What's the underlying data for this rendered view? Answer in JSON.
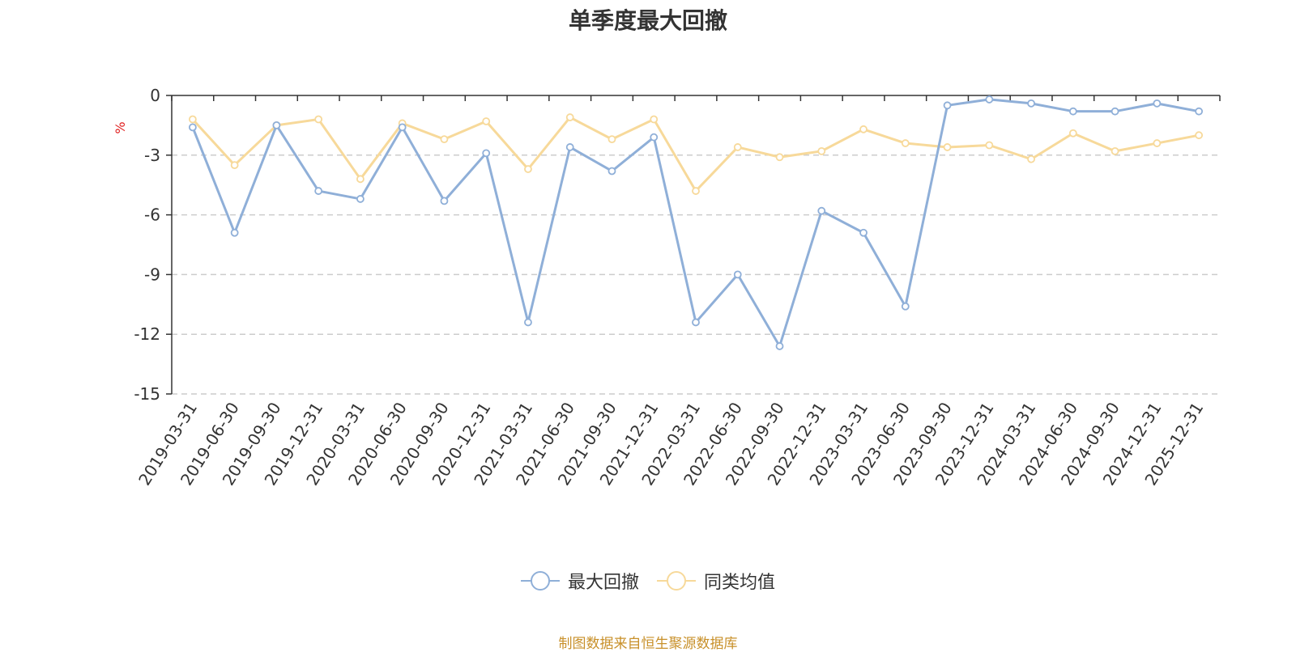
{
  "chart_data": {
    "type": "line",
    "title": "单季度最大回撤",
    "ylabel": "%",
    "xlabel": "",
    "ylim": [
      -15,
      0
    ],
    "yticks": [
      0,
      -3,
      -6,
      -9,
      -12,
      -15
    ],
    "grid": true,
    "legend_position": "bottom",
    "categories": [
      "2019-03-31",
      "2019-06-30",
      "2019-09-30",
      "2019-12-31",
      "2020-03-31",
      "2020-06-30",
      "2020-09-30",
      "2020-12-31",
      "2021-03-31",
      "2021-06-30",
      "2021-09-30",
      "2021-12-31",
      "2022-03-31",
      "2022-06-30",
      "2022-09-30",
      "2022-12-31",
      "2023-03-31",
      "2023-06-30",
      "2023-09-30",
      "2023-12-31",
      "2024-03-31",
      "2024-06-30",
      "2024-09-30",
      "2024-12-31",
      "2025-12-31"
    ],
    "series": [
      {
        "name": "最大回撤",
        "color": "#8fafd8",
        "values": [
          -1.6,
          -6.9,
          -1.5,
          -4.8,
          -5.2,
          -1.6,
          -5.3,
          -2.9,
          -11.4,
          -2.6,
          -3.8,
          -2.1,
          -11.4,
          -9.0,
          -12.6,
          -5.8,
          -6.9,
          -10.6,
          -0.5,
          -0.2,
          -0.4,
          -0.8,
          -0.8,
          -0.4,
          -0.8
        ]
      },
      {
        "name": "同类均值",
        "color": "#f7d99a",
        "values": [
          -1.2,
          -3.5,
          -1.5,
          -1.2,
          -4.2,
          -1.4,
          -2.2,
          -1.3,
          -3.7,
          -1.1,
          -2.2,
          -1.2,
          -4.8,
          -2.6,
          -3.1,
          -2.8,
          -1.7,
          -2.4,
          -2.6,
          -2.5,
          -3.2,
          -1.9,
          -2.8,
          -2.4,
          -2.0
        ]
      }
    ]
  },
  "source": "制图数据来自恒生聚源数据库"
}
